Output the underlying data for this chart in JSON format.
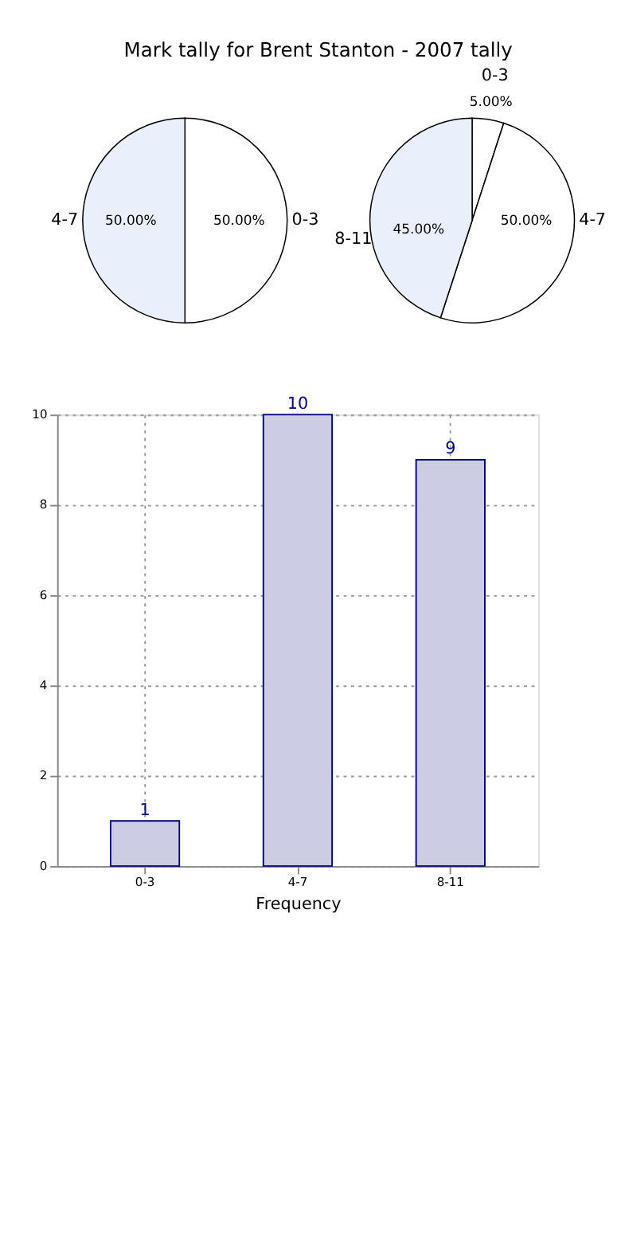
{
  "chart_data": [
    {
      "type": "pie",
      "title": "Mark tally for Brent Stanton - 2007 tally",
      "categories": [
        "0-3",
        "4-7"
      ],
      "values": [
        50,
        50
      ],
      "colors": [
        "#ffffff",
        "#eaf0fb"
      ],
      "value_labels": [
        "50.00%",
        "50.00%"
      ]
    },
    {
      "type": "pie",
      "categories": [
        "0-3",
        "4-7",
        "8-11"
      ],
      "values": [
        5,
        50,
        45
      ],
      "colors": [
        "#ffffff",
        "#ffffff",
        "#eaf0fb"
      ],
      "value_labels": [
        "5.00%",
        "50.00%",
        "45.00%"
      ]
    },
    {
      "type": "bar",
      "xlabel": "Frequency",
      "categories": [
        "0-3",
        "4-7",
        "8-11"
      ],
      "values": [
        1,
        10,
        9
      ],
      "color": "#ccccE4",
      "ylim": [
        0,
        10
      ],
      "yticks": [
        0,
        2,
        4,
        6,
        8,
        10
      ],
      "grid": true,
      "data_labels": true
    }
  ]
}
